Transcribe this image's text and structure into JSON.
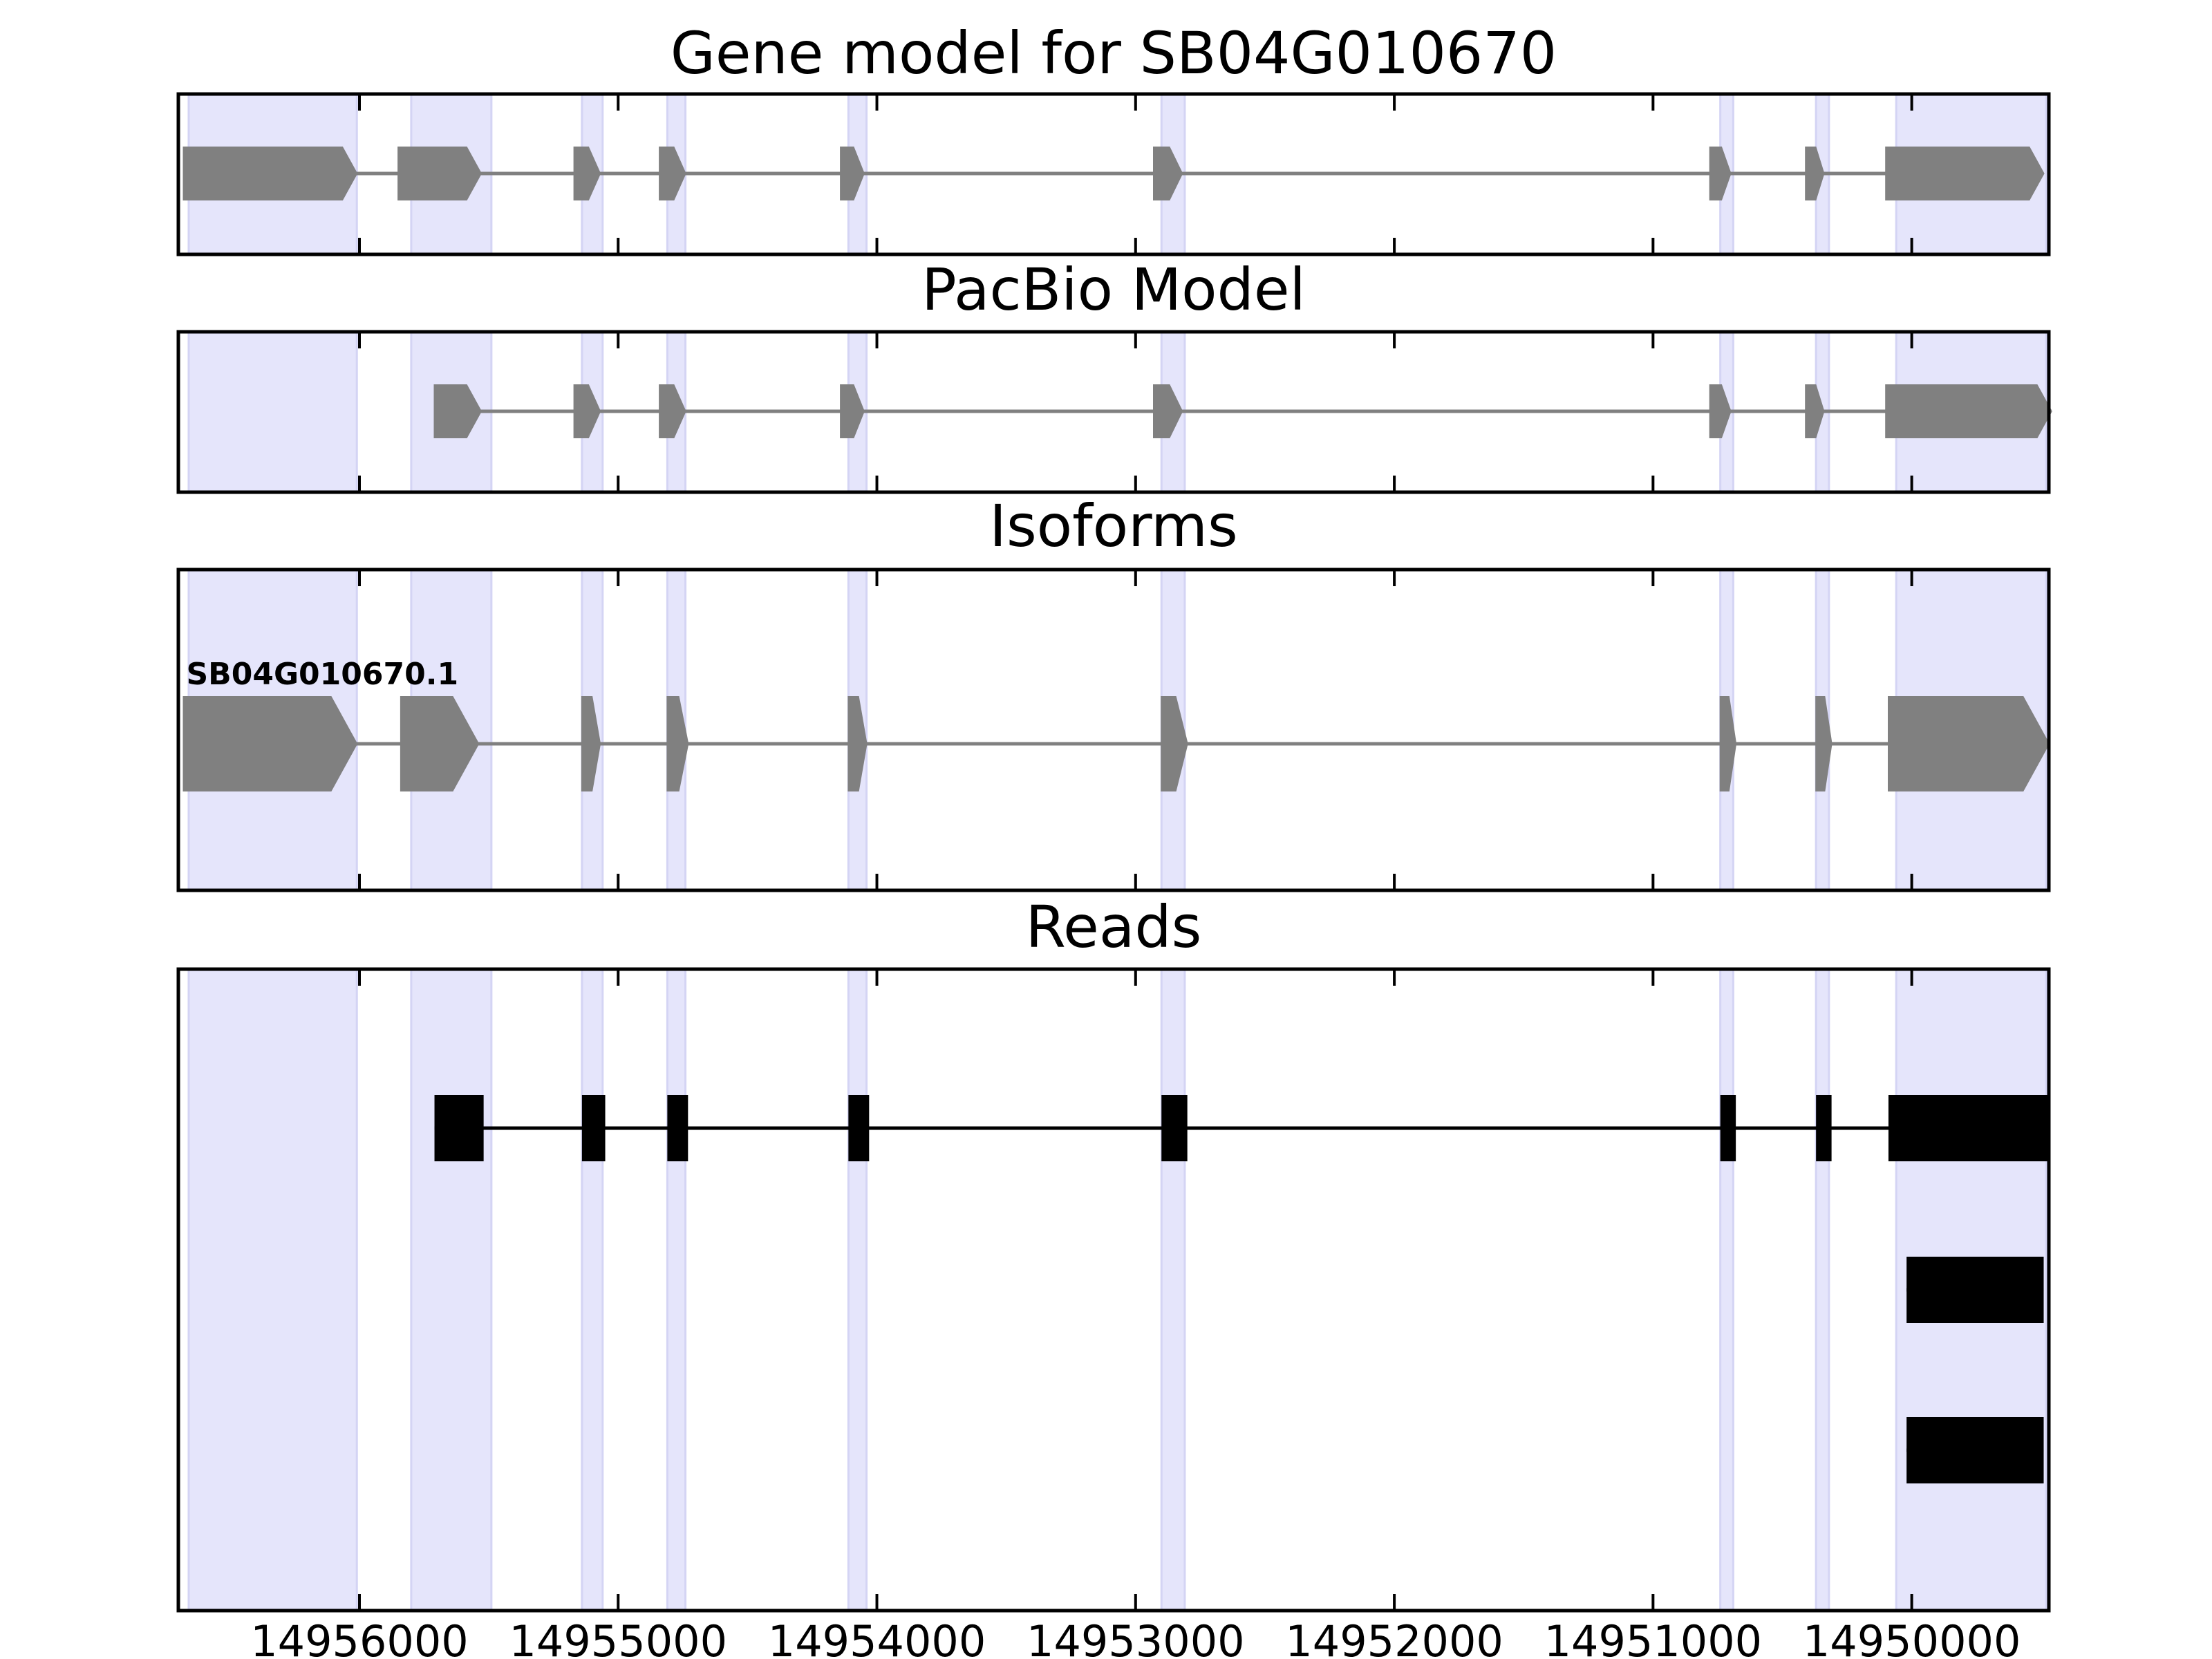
{
  "chart_data": {
    "type": "gene-track",
    "x_axis": {
      "range": [
        14956700,
        14949470
      ],
      "reversed": true,
      "ticks": [
        14956000,
        14955000,
        14954000,
        14953000,
        14952000,
        14951000,
        14950000
      ],
      "tick_labels": [
        "14956000",
        "14955000",
        "14954000",
        "14953000",
        "14952000",
        "14951000",
        "14950000"
      ]
    },
    "colors": {
      "highlight": "#e5e5fb",
      "gene_feature": "#808080",
      "read": "#000000",
      "intron_gray": "#808080",
      "intron_black": "#000000"
    },
    "exon_highlights": [
      [
        14956660,
        14956010
      ],
      [
        14955800,
        14955490
      ],
      [
        14955140,
        14955060
      ],
      [
        14954810,
        14954740
      ],
      [
        14954110,
        14954040
      ],
      [
        14952900,
        14952810
      ],
      [
        14950740,
        14950690
      ],
      [
        14950370,
        14950320
      ],
      [
        14950060,
        14949480
      ]
    ],
    "panels": [
      {
        "id": "gene-model",
        "title": "Gene model for SB04G010670",
        "features": [
          {
            "label": "",
            "strand": "-",
            "exons": [
              [
                14956680,
                14956010
              ],
              [
                14955850,
                14955530
              ],
              [
                14955170,
                14955070
              ],
              [
                14954840,
                14954740
              ],
              [
                14954140,
                14954050
              ],
              [
                14952930,
                14952820
              ],
              [
                14950780,
                14950700
              ],
              [
                14950410,
                14950340
              ],
              [
                14950100,
                14949490
              ]
            ]
          }
        ]
      },
      {
        "id": "pacbio-model",
        "title": "PacBio Model",
        "features": [
          {
            "label": "",
            "strand": "-",
            "exons": [
              [
                14955710,
                14955530
              ],
              [
                14955170,
                14955070
              ],
              [
                14954840,
                14954740
              ],
              [
                14954140,
                14954050
              ],
              [
                14952930,
                14952820
              ],
              [
                14950780,
                14950700
              ],
              [
                14950410,
                14950340
              ],
              [
                14950100,
                14949460
              ]
            ]
          }
        ]
      },
      {
        "id": "isoforms",
        "title": "Isoforms",
        "features": [
          {
            "label": "SB04G010670.1",
            "strand": "-",
            "exons": [
              [
                14956680,
                14956010
              ],
              [
                14955840,
                14955540
              ],
              [
                14955140,
                14955070
              ],
              [
                14954810,
                14954730
              ],
              [
                14954110,
                14954040
              ],
              [
                14952900,
                14952800
              ],
              [
                14950740,
                14950680
              ],
              [
                14950370,
                14950310
              ],
              [
                14950090,
                14949470
              ]
            ]
          }
        ]
      },
      {
        "id": "reads",
        "title": "Reads",
        "features": [
          {
            "label": "",
            "exons": [
              [
                14955710,
                14955520
              ],
              [
                14955140,
                14955050
              ],
              [
                14954810,
                14954730
              ],
              [
                14954110,
                14954030
              ],
              [
                14952900,
                14952800
              ],
              [
                14950740,
                14950680
              ],
              [
                14950370,
                14950310
              ],
              [
                14950090,
                14949470
              ]
            ]
          },
          {
            "label": "",
            "exons": [
              [
                14950020,
                14949490
              ]
            ]
          },
          {
            "label": "",
            "exons": [
              [
                14950020,
                14949490
              ]
            ]
          }
        ]
      }
    ]
  }
}
